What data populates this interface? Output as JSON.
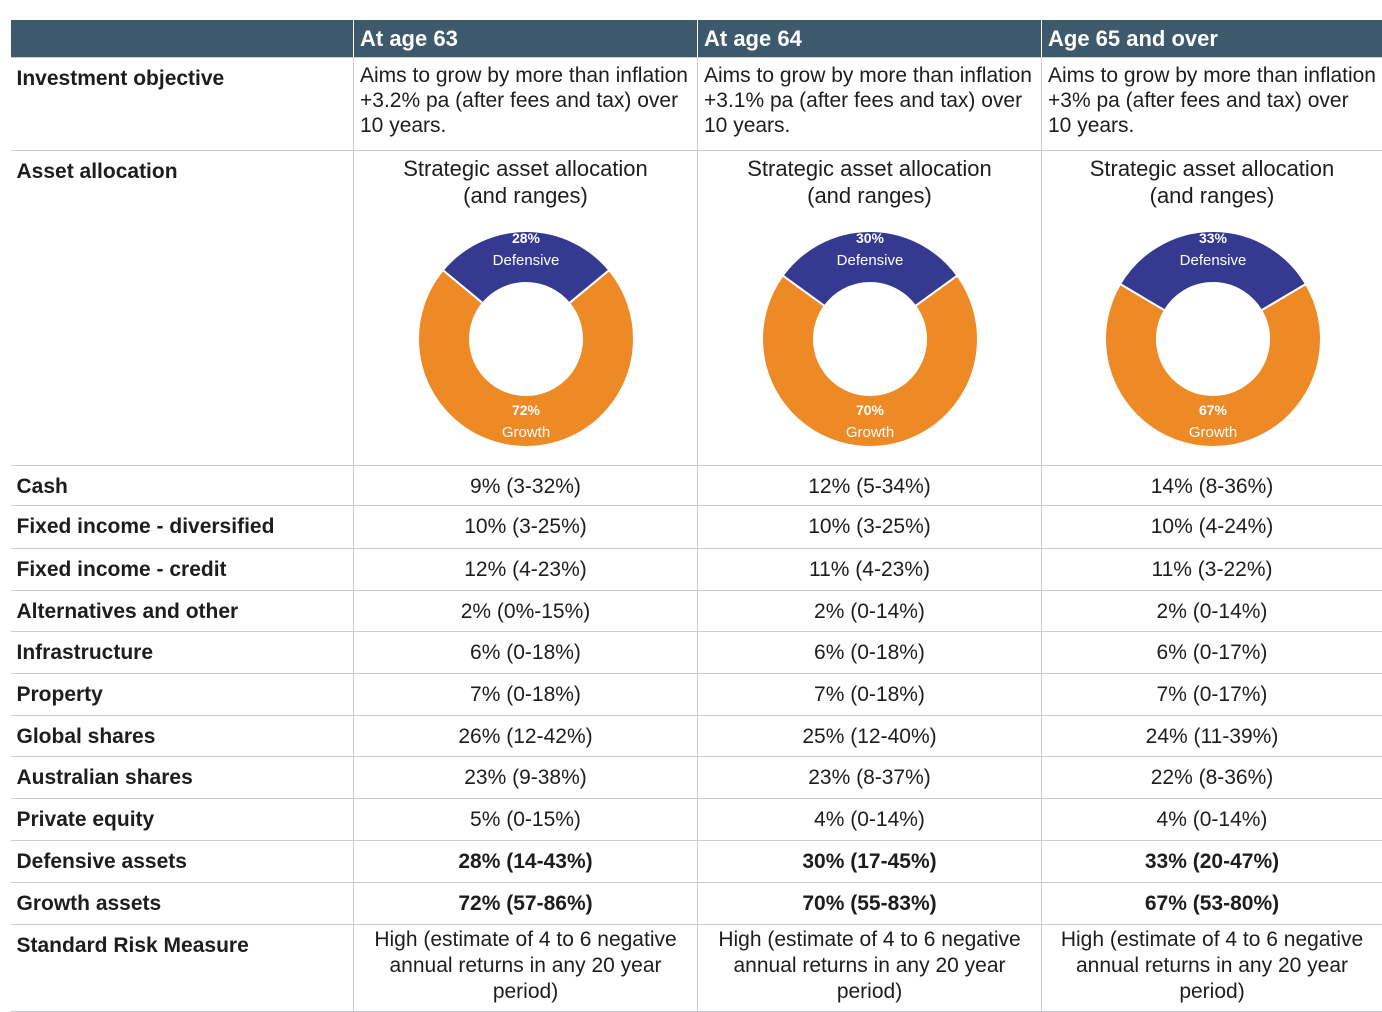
{
  "table": {
    "columns": [
      "At age 63",
      "At age 64",
      "Age 65 and over"
    ],
    "rows": [
      {
        "label": "Investment objective",
        "cells": [
          "Aims to grow by more than inflation +3.2% pa (after fees and tax) over 10 years.",
          "Aims to grow by more than inflation +3.1% pa (after fees and tax) over 10 years.",
          "Aims to grow by more than inflation +3% pa (after fees and tax) over 10 years."
        ]
      },
      {
        "label": "Asset allocation",
        "cells": [
          {
            "title": "Strategic asset allocation (and ranges)",
            "segments": [
              {
                "name": "Defensive",
                "value": 28,
                "value_label": "28%",
                "color": "#35398f"
              },
              {
                "name": "Growth",
                "value": 72,
                "value_label": "72%",
                "color": "#ee8a26"
              }
            ]
          },
          {
            "title": "Strategic asset allocation (and ranges)",
            "segments": [
              {
                "name": "Defensive",
                "value": 30,
                "value_label": "30%",
                "color": "#35398f"
              },
              {
                "name": "Growth",
                "value": 70,
                "value_label": "70%",
                "color": "#ee8a26"
              }
            ]
          },
          {
            "title": "Strategic asset allocation (and ranges)",
            "segments": [
              {
                "name": "Defensive",
                "value": 33,
                "value_label": "33%",
                "color": "#35398f"
              },
              {
                "name": "Growth",
                "value": 67,
                "value_label": "67%",
                "color": "#ee8a26"
              }
            ]
          }
        ]
      },
      {
        "label": "Cash",
        "cells": [
          "9% (3-32%)",
          "12% (5-34%)",
          "14% (8-36%)"
        ]
      },
      {
        "label": "Fixed income - diversified",
        "cells": [
          "10% (3-25%)",
          "10% (3-25%)",
          "10% (4-24%)"
        ]
      },
      {
        "label": "Fixed income - credit",
        "cells": [
          "12% (4-23%)",
          "11% (4-23%)",
          "11% (3-22%)"
        ]
      },
      {
        "label": "Alternatives and other",
        "cells": [
          "2% (0%-15%)",
          "2% (0-14%)",
          "2% (0-14%)"
        ]
      },
      {
        "label": "Infrastructure",
        "cells": [
          "6% (0-18%)",
          "6% (0-18%)",
          "6% (0-17%)"
        ]
      },
      {
        "label": "Property",
        "cells": [
          "7% (0-18%)",
          "7% (0-18%)",
          "7% (0-17%)"
        ]
      },
      {
        "label": "Global shares",
        "cells": [
          "26% (12-42%)",
          "25% (12-40%)",
          "24% (11-39%)"
        ]
      },
      {
        "label": "Australian shares",
        "cells": [
          "23% (9-38%)",
          "23% (8-37%)",
          "22% (8-36%)"
        ]
      },
      {
        "label": "Private equity",
        "cells": [
          "5% (0-15%)",
          "4% (0-14%)",
          "4% (0-14%)"
        ]
      },
      {
        "label": "Defensive assets",
        "cells": [
          "28% (14-43%)",
          "30% (17-45%)",
          "33% (20-47%)"
        ]
      },
      {
        "label": "Growth assets",
        "cells": [
          "72% (57-86%)",
          "70% (55-83%)",
          "67% (53-80%)"
        ]
      },
      {
        "label": "Standard Risk Measure",
        "cells": [
          "High (estimate of 4 to 6 negative annual returns in any 20 year period)",
          "High (estimate of 4 to 6 negative annual returns in any 20 year period)",
          "High (estimate of 4 to 6 negative annual returns in any 20 year period)"
        ]
      }
    ]
  }
}
